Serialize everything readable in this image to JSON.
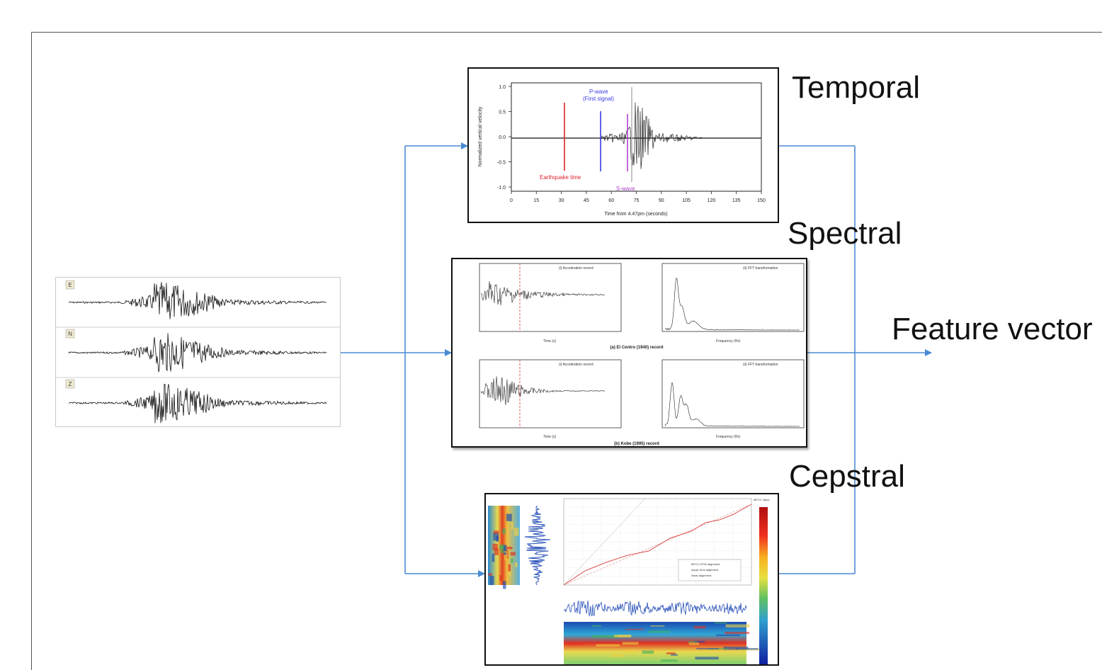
{
  "input_panel": {
    "channels": [
      {
        "label": "E"
      },
      {
        "label": "N"
      },
      {
        "label": "Z"
      }
    ]
  },
  "temporal_panel": {
    "y_axis_label": "Normalized vertical velocity",
    "y_ticks": [
      "1.0",
      "0.5",
      "0.0",
      "-0.5",
      "-1.0"
    ],
    "x_ticks": [
      "0",
      "15",
      "30",
      "45",
      "60",
      "75",
      "90",
      "105",
      "120",
      "135",
      "150"
    ],
    "x_axis_label": "Time from 4.47pm (seconds)",
    "annotations": {
      "earthquake": "Earthquake time",
      "p_wave_1": "P-wave",
      "p_wave_2": "(First signal)",
      "s_wave": "S-wave"
    },
    "colors": {
      "earthquake": "#e0202a",
      "p_wave": "#3a3ae8",
      "s_wave": "#b040d0"
    }
  },
  "spectral_panel": {
    "caption_top": "(a) El Centro (1940) record",
    "caption_bottom": "(b) Kobe (1995) record",
    "accel_title": "(i) Acceleration record",
    "fft_title": "(ii) FFT transformation",
    "time_label": "Time (s)",
    "freq_label": "Frequency (Hz)"
  },
  "cepstral_panel": {
    "legend": [
      "MFCC-DTW alignment",
      "equal- time alignment",
      "linear alignment"
    ],
    "colorbar_title": "MFCC Value"
  },
  "labels": {
    "temporal": "Temporal",
    "spectral": "Spectral",
    "cepstral": "Cepstral",
    "output": "Feature vector"
  },
  "colors": {
    "connector": "#4a8ad4",
    "panel_border": "#111111"
  }
}
